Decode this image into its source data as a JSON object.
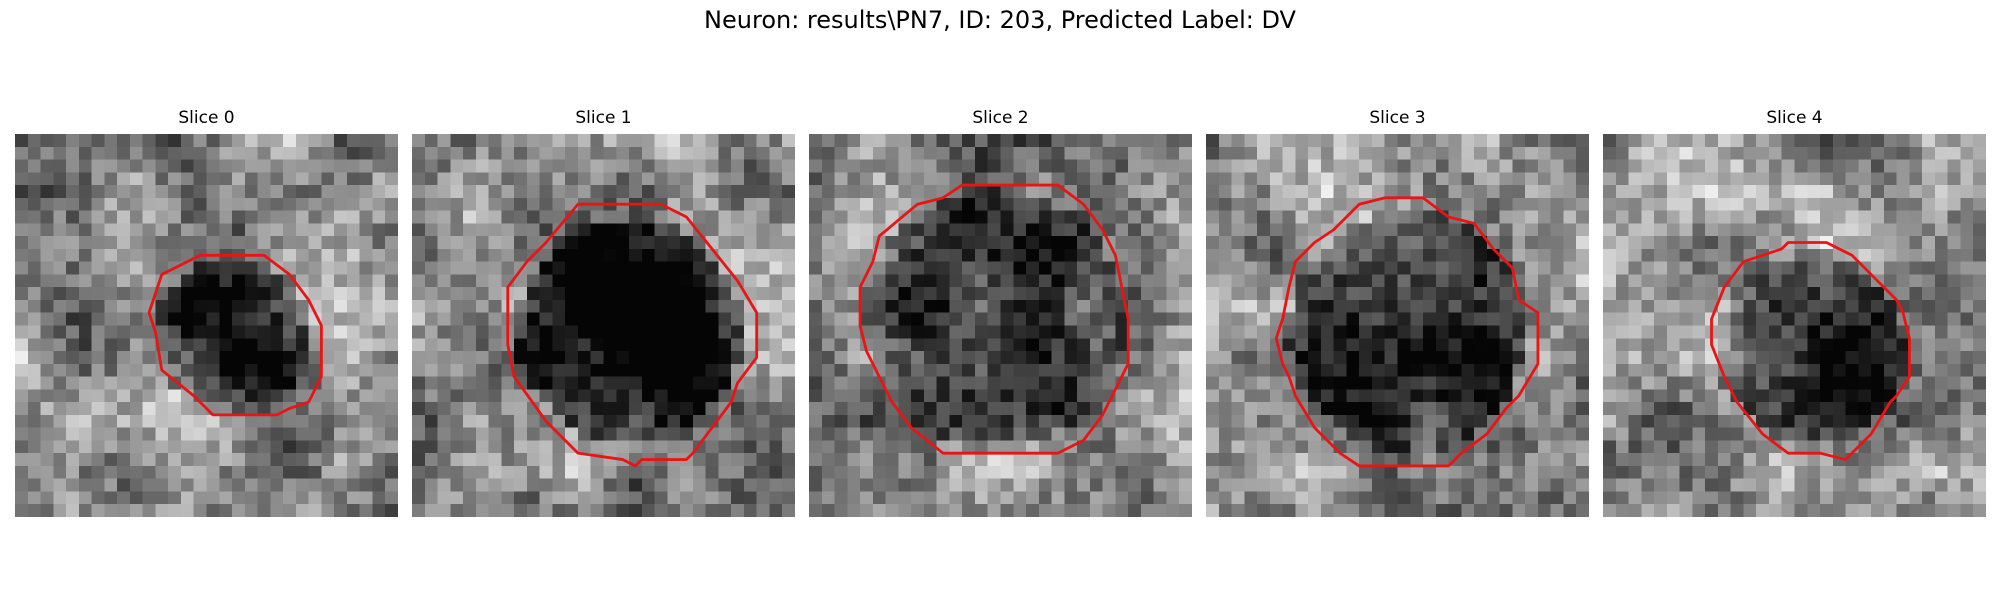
{
  "figure": {
    "title": "Neuron: results\\PN7, ID: 203, Predicted Label: DV",
    "contour_color": "#e81515",
    "slices": [
      {
        "label": "Slice 0"
      },
      {
        "label": "Slice 1"
      },
      {
        "label": "Slice 2"
      },
      {
        "label": "Slice 3"
      },
      {
        "label": "Slice 4"
      }
    ]
  }
}
